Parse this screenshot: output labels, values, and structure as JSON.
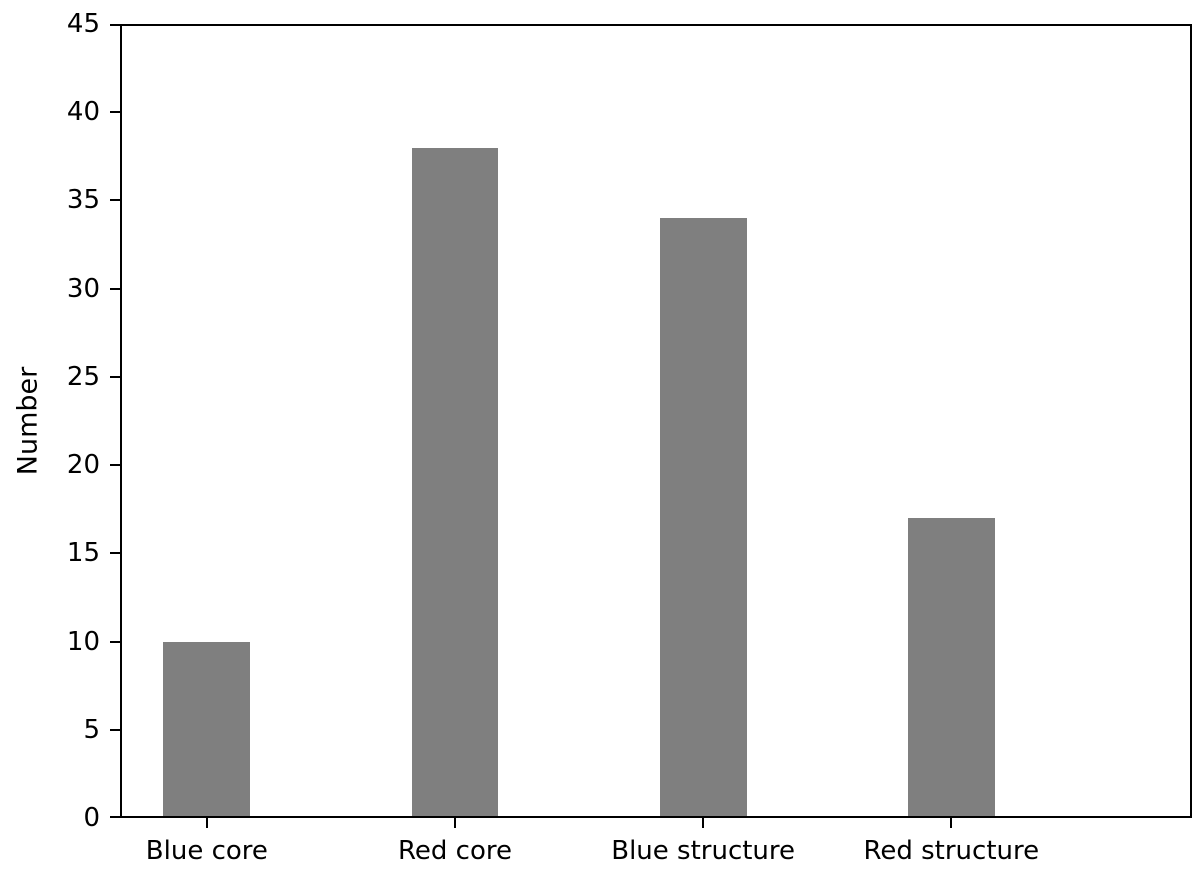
{
  "figure": {
    "background": "#ffffff"
  },
  "chart_data": {
    "type": "bar",
    "categories": [
      "Blue core",
      "Red core",
      "Blue structure",
      "Red structure"
    ],
    "values": [
      10,
      38,
      34,
      17
    ],
    "title": "",
    "xlabel": "",
    "ylabel": "Number",
    "ylim": [
      0,
      45
    ],
    "ytick_step": 5,
    "yticks": [
      0,
      5,
      10,
      15,
      20,
      25,
      30,
      35,
      40,
      45
    ],
    "xlim": [
      -0.35,
      3.97
    ],
    "bar_width": 0.35,
    "bar_color": "#7f7f7f",
    "axis_color": "#000000",
    "tick_label_color": "#000000",
    "grid": false,
    "legend": false
  }
}
